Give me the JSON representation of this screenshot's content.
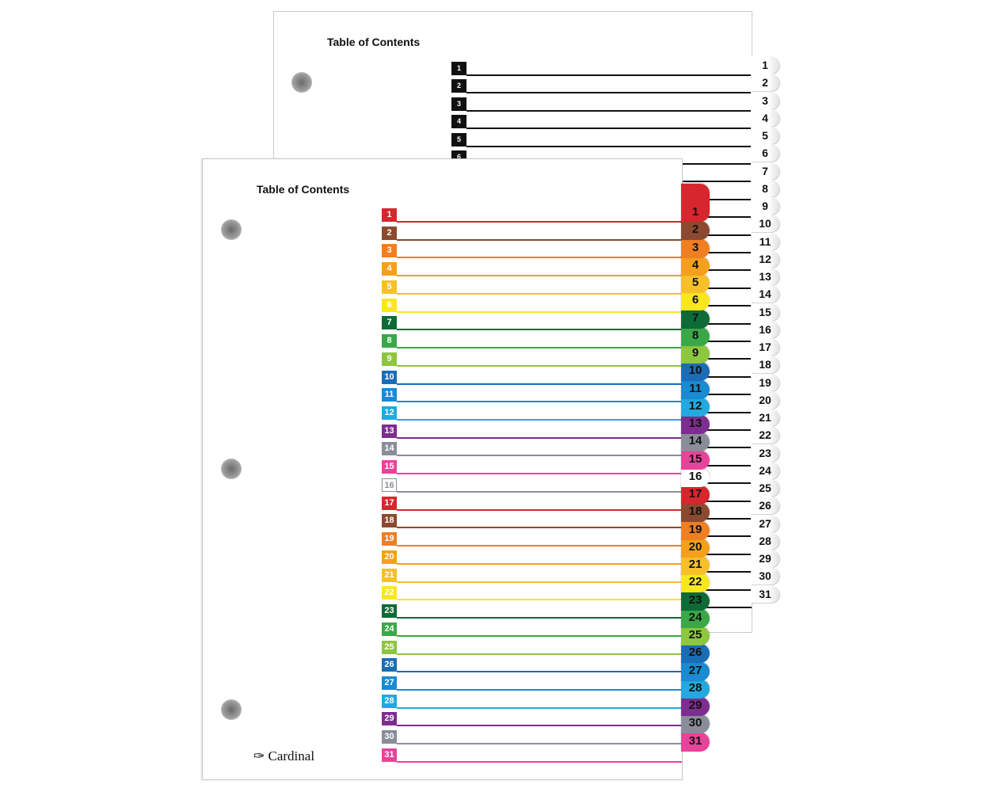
{
  "back_sheet": {
    "title": "Table of Contents",
    "count": 31
  },
  "front_sheet": {
    "title": "Table of Contents",
    "count": 31
  },
  "brand": "Cardinal",
  "colors": [
    "#d7262e",
    "#8b4a2f",
    "#f07f22",
    "#f5a01c",
    "#f6c02a",
    "#f9e71e",
    "#0e6b38",
    "#3aa847",
    "#8dc63f",
    "#1a6db5",
    "#1a8ad1",
    "#22a9e0",
    "#7d2d8f",
    "#8a8d99",
    "#e8439a",
    "#ffffff"
  ],
  "back_color": "#111111"
}
